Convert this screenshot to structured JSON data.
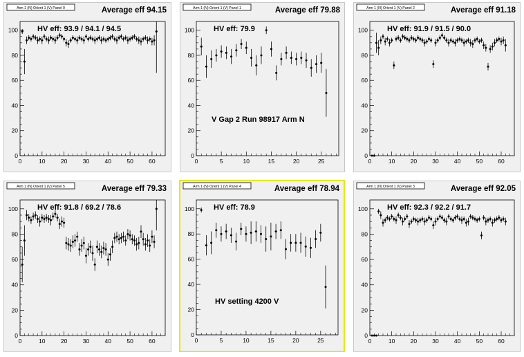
{
  "chart_data": [
    {
      "type": "scatter",
      "title": "Arm 1 (N) Orient 1 (V) Panel 0",
      "average": "Average eff 94.15",
      "hv_eff": "HV eff:   93.9 / 94.1 / 94.5",
      "annotation": "",
      "xlim": [
        0,
        66
      ],
      "ylim": [
        0,
        107
      ],
      "xticks": [
        "0",
        "10",
        "20",
        "30",
        "40",
        "50",
        "60"
      ],
      "yticks": [
        "0",
        "20",
        "40",
        "60",
        "80",
        "100"
      ],
      "x": [
        1,
        2,
        3,
        4,
        5,
        6,
        7,
        8,
        9,
        10,
        11,
        12,
        13,
        14,
        15,
        16,
        17,
        18,
        19,
        20,
        21,
        22,
        23,
        24,
        25,
        26,
        27,
        28,
        29,
        30,
        31,
        32,
        33,
        34,
        35,
        36,
        37,
        38,
        39,
        40,
        41,
        42,
        43,
        44,
        45,
        46,
        47,
        48,
        49,
        50,
        51,
        52,
        53,
        54,
        55,
        56,
        57,
        58,
        59,
        60,
        61,
        62
      ],
      "y": [
        99,
        75,
        92,
        94,
        93,
        95,
        94,
        92,
        93,
        92,
        95,
        93,
        92,
        94,
        93,
        92,
        94,
        96,
        95,
        93,
        90,
        89,
        92,
        94,
        93,
        92,
        94,
        93,
        92,
        95,
        93,
        94,
        93,
        92,
        93,
        94,
        92,
        93,
        92,
        93,
        94,
        95,
        93,
        92,
        94,
        95,
        93,
        94,
        92,
        93,
        94,
        95,
        93,
        92,
        91,
        93,
        94,
        92,
        93,
        91,
        92,
        99
      ],
      "err": [
        2,
        10,
        3,
        2,
        2,
        2,
        2,
        3,
        2,
        3,
        2,
        2,
        3,
        2,
        2,
        3,
        2,
        2,
        2,
        2,
        3,
        3,
        2,
        2,
        2,
        3,
        2,
        2,
        3,
        2,
        2,
        2,
        2,
        3,
        2,
        2,
        3,
        2,
        2,
        2,
        2,
        2,
        2,
        3,
        2,
        2,
        2,
        2,
        3,
        2,
        2,
        2,
        2,
        3,
        3,
        2,
        2,
        3,
        2,
        3,
        4,
        33
      ]
    },
    {
      "type": "scatter",
      "title": "Arm 1 (N) Orient 1 (V) Panel 1",
      "average": "Average eff 79.88",
      "hv_eff": "HV eff:   79.9",
      "annotation": "V Gap 2 Run 98917 Arm N",
      "xlim": [
        0,
        28.5
      ],
      "ylim": [
        0,
        107
      ],
      "xticks": [
        "0",
        "5",
        "10",
        "15",
        "20",
        "25"
      ],
      "yticks": [
        "0",
        "20",
        "40",
        "60",
        "80",
        "100"
      ],
      "x": [
        1,
        2,
        3,
        4,
        5,
        6,
        7,
        8,
        9,
        10,
        11,
        12,
        13,
        14,
        15,
        16,
        17,
        18,
        19,
        20,
        21,
        22,
        23,
        24,
        25,
        26
      ],
      "y": [
        87,
        71,
        77,
        80,
        83,
        82,
        79,
        84,
        89,
        86,
        78,
        72,
        80,
        100,
        85,
        66,
        77,
        82,
        78,
        77,
        78,
        76,
        70,
        73,
        74,
        50
      ],
      "err": [
        7,
        9,
        7,
        5,
        5,
        5,
        6,
        5,
        4,
        5,
        7,
        8,
        7,
        3,
        6,
        6,
        5,
        5,
        5,
        5,
        5,
        6,
        7,
        7,
        8,
        19
      ]
    },
    {
      "type": "scatter",
      "title": "Arm 1 (N) Orient 1 (V) Panel 2",
      "average": "Average eff 91.18",
      "hv_eff": "HV eff:   91.9 / 91.5 / 90.0",
      "annotation": "",
      "xlim": [
        0,
        66
      ],
      "ylim": [
        0,
        107
      ],
      "xticks": [
        "0",
        "10",
        "20",
        "30",
        "40",
        "50",
        "60"
      ],
      "yticks": [
        "0",
        "20",
        "40",
        "60",
        "80",
        "100"
      ],
      "x": [
        1,
        2,
        3,
        4,
        5,
        6,
        7,
        8,
        9,
        10,
        11,
        12,
        13,
        14,
        15,
        16,
        17,
        18,
        19,
        20,
        21,
        22,
        23,
        24,
        25,
        26,
        27,
        28,
        29,
        30,
        31,
        32,
        33,
        34,
        35,
        36,
        37,
        38,
        39,
        40,
        41,
        42,
        43,
        44,
        45,
        46,
        47,
        48,
        49,
        50,
        51,
        52,
        53,
        54,
        55,
        56,
        57,
        58,
        59,
        60,
        61,
        62
      ],
      "y": [
        0,
        0,
        90,
        86,
        92,
        95,
        91,
        93,
        90,
        92,
        72,
        93,
        94,
        92,
        95,
        94,
        93,
        92,
        94,
        93,
        92,
        94,
        93,
        92,
        90,
        91,
        93,
        92,
        73,
        90,
        92,
        94,
        96,
        94,
        92,
        90,
        92,
        91,
        90,
        92,
        93,
        92,
        90,
        91,
        92,
        90,
        89,
        92,
        93,
        91,
        92,
        88,
        86,
        71,
        85,
        87,
        90,
        92,
        93,
        91,
        92,
        88
      ],
      "err": [
        0,
        0,
        8,
        6,
        3,
        2,
        3,
        2,
        3,
        2,
        3,
        2,
        2,
        2,
        2,
        2,
        2,
        2,
        2,
        2,
        2,
        2,
        2,
        2,
        3,
        2,
        2,
        2,
        3,
        3,
        2,
        2,
        2,
        2,
        2,
        3,
        2,
        2,
        3,
        2,
        2,
        2,
        3,
        2,
        2,
        3,
        3,
        2,
        2,
        2,
        2,
        3,
        3,
        3,
        3,
        3,
        3,
        2,
        2,
        3,
        3,
        5
      ]
    },
    {
      "type": "scatter",
      "title": "Arm 1 (N) Orient 1 (V) Panel 5",
      "average": "Average eff 79.33",
      "hv_eff": "HV eff:   91.8 / 69.2 / 78.6",
      "annotation": "",
      "xlim": [
        0,
        66
      ],
      "ylim": [
        0,
        107
      ],
      "xticks": [
        "0",
        "10",
        "20",
        "30",
        "40",
        "50",
        "60"
      ],
      "yticks": [
        "0",
        "20",
        "40",
        "60",
        "80",
        "100"
      ],
      "x": [
        1,
        2,
        3,
        4,
        5,
        6,
        7,
        8,
        9,
        10,
        11,
        12,
        13,
        14,
        15,
        16,
        17,
        18,
        19,
        20,
        21,
        22,
        23,
        24,
        25,
        26,
        27,
        28,
        29,
        30,
        31,
        32,
        33,
        34,
        35,
        36,
        37,
        38,
        39,
        40,
        41,
        42,
        43,
        44,
        45,
        46,
        47,
        48,
        49,
        50,
        51,
        52,
        53,
        54,
        55,
        56,
        57,
        58,
        59,
        60,
        61,
        62
      ],
      "y": [
        56,
        75,
        95,
        93,
        91,
        94,
        95,
        92,
        90,
        93,
        92,
        93,
        92,
        91,
        94,
        96,
        93,
        88,
        90,
        89,
        73,
        72,
        71,
        74,
        75,
        78,
        68,
        71,
        73,
        63,
        68,
        70,
        65,
        56,
        70,
        68,
        66,
        69,
        68,
        60,
        64,
        70,
        77,
        78,
        76,
        77,
        78,
        75,
        80,
        79,
        76,
        75,
        72,
        73,
        82,
        76,
        72,
        75,
        71,
        78,
        74,
        100
      ],
      "err": [
        14,
        12,
        4,
        3,
        3,
        3,
        3,
        3,
        4,
        3,
        3,
        3,
        3,
        4,
        3,
        3,
        3,
        4,
        4,
        4,
        5,
        5,
        5,
        5,
        5,
        4,
        5,
        5,
        5,
        6,
        5,
        5,
        6,
        5,
        5,
        5,
        5,
        5,
        5,
        5,
        5,
        5,
        4,
        4,
        4,
        4,
        4,
        4,
        4,
        4,
        4,
        4,
        5,
        5,
        5,
        5,
        5,
        5,
        5,
        5,
        5,
        17
      ]
    },
    {
      "type": "scatter",
      "title": "Arm 1 (N) Orient 1 (V) Panel 4",
      "average": "Average eff 78.94",
      "hv_eff": "HV eff:   78.9",
      "annotation": "HV setting 4200 V",
      "xlim": [
        0,
        28.5
      ],
      "ylim": [
        0,
        107
      ],
      "xticks": [
        "0",
        "5",
        "10",
        "15",
        "20",
        "25"
      ],
      "yticks": [
        "0",
        "20",
        "40",
        "60",
        "80",
        "100"
      ],
      "x": [
        1,
        2,
        3,
        4,
        5,
        6,
        7,
        8,
        9,
        10,
        11,
        12,
        13,
        14,
        15,
        16,
        17,
        18,
        19,
        20,
        21,
        22,
        23,
        24,
        25,
        26
      ],
      "y": [
        99,
        71,
        73,
        83,
        80,
        82,
        79,
        74,
        84,
        80,
        81,
        82,
        80,
        76,
        78,
        82,
        83,
        68,
        73,
        73,
        73,
        70,
        69,
        76,
        81,
        38
      ],
      "err": [
        2,
        8,
        9,
        6,
        6,
        6,
        6,
        7,
        5,
        6,
        9,
        8,
        7,
        10,
        11,
        6,
        7,
        8,
        7,
        7,
        8,
        8,
        8,
        7,
        7,
        17
      ]
    },
    {
      "type": "scatter",
      "title": "Arm 1 (N) Orient 1 (V) Panel 3",
      "average": "Average eff 92.05",
      "hv_eff": "HV eff:   92.3 / 92.2 / 91.7",
      "annotation": "",
      "xlim": [
        0,
        66
      ],
      "ylim": [
        0,
        107
      ],
      "xticks": [
        "0",
        "10",
        "20",
        "30",
        "40",
        "50",
        "60"
      ],
      "yticks": [
        "0",
        "20",
        "40",
        "60",
        "80",
        "100"
      ],
      "x": [
        1,
        2,
        3,
        4,
        5,
        6,
        7,
        8,
        9,
        10,
        11,
        12,
        13,
        14,
        15,
        16,
        17,
        18,
        19,
        20,
        21,
        22,
        23,
        24,
        25,
        26,
        27,
        28,
        29,
        30,
        31,
        32,
        33,
        34,
        35,
        36,
        37,
        38,
        39,
        40,
        41,
        42,
        43,
        44,
        45,
        46,
        47,
        48,
        49,
        50,
        51,
        52,
        53,
        54,
        55,
        56,
        57,
        58,
        59,
        60,
        61,
        62
      ],
      "y": [
        0,
        0,
        0,
        98,
        95,
        89,
        91,
        93,
        92,
        94,
        92,
        91,
        95,
        93,
        90,
        92,
        94,
        88,
        90,
        92,
        91,
        90,
        91,
        92,
        90,
        91,
        93,
        92,
        87,
        90,
        92,
        94,
        93,
        91,
        90,
        94,
        92,
        91,
        93,
        94,
        92,
        91,
        92,
        89,
        90,
        94,
        93,
        92,
        91,
        92,
        79,
        93,
        90,
        91,
        92,
        89,
        91,
        92,
        93,
        91,
        92,
        90
      ],
      "err": [
        0,
        0,
        0,
        2,
        3,
        3,
        2,
        2,
        2,
        2,
        2,
        3,
        2,
        2,
        3,
        2,
        2,
        3,
        2,
        2,
        2,
        3,
        2,
        2,
        3,
        2,
        2,
        2,
        3,
        3,
        2,
        2,
        2,
        2,
        3,
        2,
        2,
        2,
        2,
        2,
        2,
        3,
        2,
        3,
        3,
        2,
        2,
        2,
        2,
        2,
        3,
        2,
        3,
        2,
        2,
        3,
        2,
        2,
        2,
        2,
        2,
        3
      ]
    }
  ]
}
